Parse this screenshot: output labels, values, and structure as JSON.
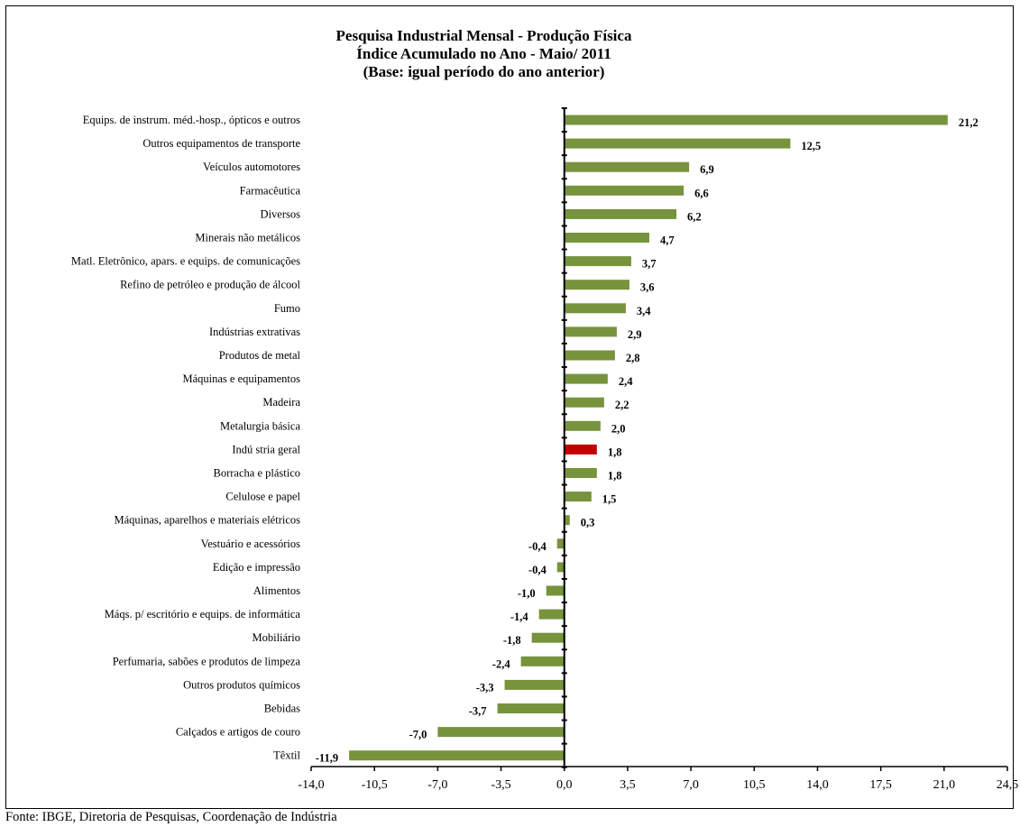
{
  "chart_data": {
    "type": "bar",
    "orientation": "horizontal",
    "title": "Pesquisa Industrial Mensal - Produção Física",
    "subtitle": "Índice Acumulado no Ano - Maio/ 2011",
    "subtitle2": "(Base: igual período do ano anterior)",
    "xlim": [
      -14.0,
      24.5
    ],
    "xticks": [
      "-14,0",
      "-10,5",
      "-7,0",
      "-3,5",
      "0,0",
      "3,5",
      "7,0",
      "10,5",
      "14,0",
      "17,5",
      "21,0",
      "24,5"
    ],
    "xtick_values": [
      -14.0,
      -10.5,
      -7.0,
      -3.5,
      0.0,
      3.5,
      7.0,
      10.5,
      14.0,
      17.5,
      21.0,
      24.5
    ],
    "bar_color": "#77933c",
    "highlight_color": "#c00000",
    "highlight_category": "Indú stria geral",
    "grid": false,
    "categories": [
      "Equips. de instrum. méd.-hosp., ópticos e outros",
      "Outros equipamentos de transporte",
      "Veículos automotores",
      "Farmacêutica",
      "Diversos",
      "Minerais não metálicos",
      "Matl. Eletrônico, apars. e equips. de comunicações",
      "Refino de petróleo e produção de álcool",
      "Fumo",
      "Indústrias extrativas",
      "Produtos de metal",
      "Máquinas e equipamentos",
      "Madeira",
      "Metalurgia básica",
      "Indú stria geral",
      "Borracha e plástico",
      "Celulose e papel",
      "Máquinas, aparelhos e materiais elétricos",
      "Vestuário e acessórios",
      "Edição e impressão",
      "Alimentos",
      "Máqs. p/ escritório e equips. de informática",
      "Mobiliário",
      "Perfumaria, sabões e produtos de limpeza",
      "Outros produtos químicos",
      "Bebidas",
      "Calçados e artigos de couro",
      "Têxtil"
    ],
    "values": [
      21.2,
      12.5,
      6.9,
      6.6,
      6.2,
      4.7,
      3.7,
      3.6,
      3.4,
      2.9,
      2.8,
      2.4,
      2.2,
      2.0,
      1.8,
      1.8,
      1.5,
      0.3,
      -0.4,
      -0.4,
      -1.0,
      -1.4,
      -1.8,
      -2.4,
      -3.3,
      -3.7,
      -7.0,
      -11.9
    ],
    "value_labels": [
      "21,2",
      "12,5",
      "6,9",
      "6,6",
      "6,2",
      "4,7",
      "3,7",
      "3,6",
      "3,4",
      "2,9",
      "2,8",
      "2,4",
      "2,2",
      "2,0",
      "1,8",
      "1,8",
      "1,5",
      "0,3",
      "-0,4",
      "-0,4",
      "-1,0",
      "-1,4",
      "-1,8",
      "-2,4",
      "-3,3",
      "-3,7",
      "-7,0",
      "-11,9"
    ]
  },
  "source": "Fonte: IBGE, Diretoria de Pesquisas, Coordenação de Indústria"
}
